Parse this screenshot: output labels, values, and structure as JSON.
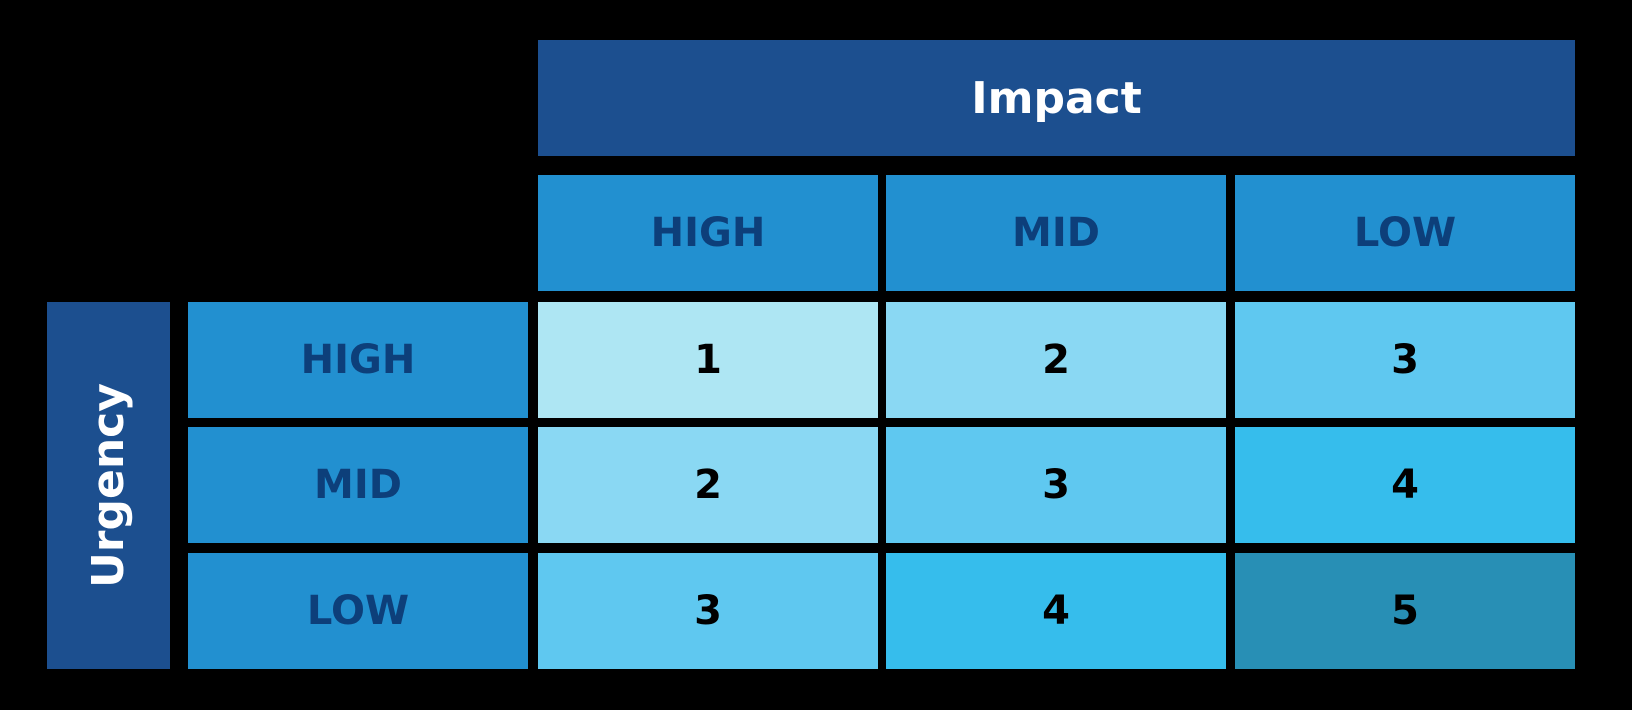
{
  "impact": {
    "label": "Impact",
    "levels": [
      "HIGH",
      "MID",
      "LOW"
    ]
  },
  "urgency": {
    "label": "Urgency",
    "levels": [
      "HIGH",
      "MID",
      "LOW"
    ]
  },
  "matrix": [
    [
      1,
      2,
      3
    ],
    [
      2,
      3,
      4
    ],
    [
      3,
      4,
      5
    ]
  ]
}
